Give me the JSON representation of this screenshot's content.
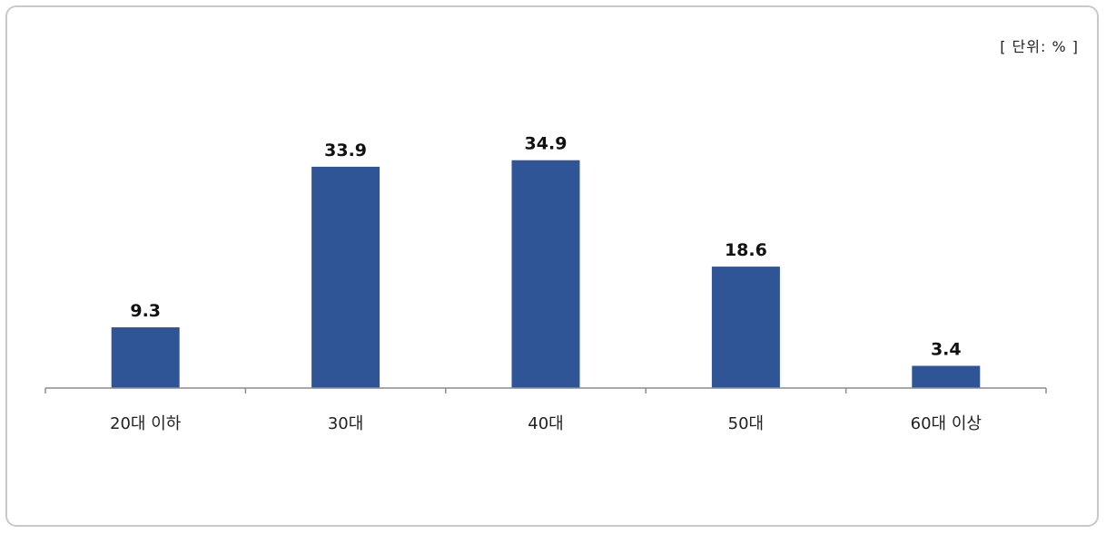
{
  "chart_data": {
    "type": "bar",
    "unit_note": "[ 단위: % ]",
    "categories": [
      "20대 이하",
      "30대",
      "40대",
      "50대",
      "60대 이상"
    ],
    "values": [
      9.3,
      33.9,
      34.9,
      18.6,
      3.4
    ],
    "data_labels": [
      "9.3",
      "33.9",
      "34.9",
      "18.6",
      "3.4"
    ],
    "ylim": [
      0,
      40
    ],
    "grid": false,
    "legend": "none",
    "bar_color": "#2f5597"
  }
}
